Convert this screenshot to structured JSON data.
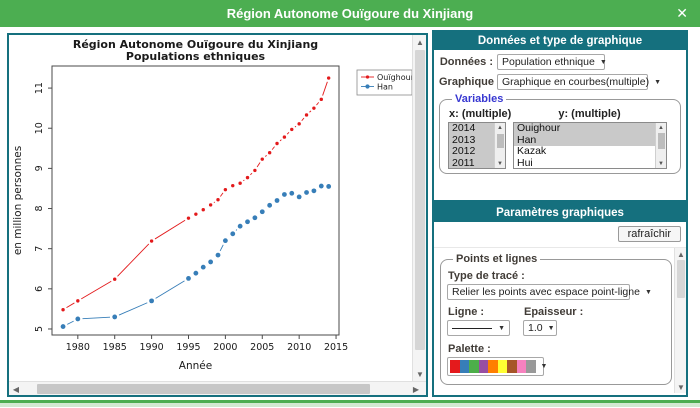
{
  "icons": {
    "close": "✕",
    "dropdown": "▼",
    "scroll_up": "▲",
    "scroll_down": "▼",
    "scroll_left": "◀",
    "scroll_right": "▶",
    "list_up": "▲",
    "list_down": "▼"
  },
  "colors": {
    "titlebar_green": "#4cae51",
    "panel_teal": "#15707e",
    "list_selected": "#c9c9c9",
    "series_red": "#e31a1c",
    "series_blue": "#377eb8"
  },
  "window": {
    "title": "Région Autonome Ouïgoure du Xinjiang"
  },
  "chart_data": {
    "type": "line",
    "title": "Région Autonome Ouïgoure du Xinjiang",
    "subtitle": "Populations ethniques",
    "xlabel": "Année",
    "ylabel": "en million personnes",
    "legend_position": "top-right",
    "grid": false,
    "point_line_style": "points connected by segments with gaps (R type='b')",
    "xlim": [
      1976.5,
      2015.4
    ],
    "ylim": [
      4.85,
      11.55
    ],
    "xticks": [
      1980,
      1985,
      1990,
      1995,
      2000,
      2005,
      2010,
      2015
    ],
    "yticks": [
      5,
      6,
      7,
      8,
      9,
      10,
      11
    ],
    "x": [
      1978,
      1980,
      1985,
      1990,
      1995,
      1996,
      1997,
      1998,
      1999,
      2000,
      2001,
      2002,
      2003,
      2004,
      2005,
      2006,
      2007,
      2008,
      2009,
      2010,
      2011,
      2012,
      2013,
      2014
    ],
    "series": [
      {
        "name": "Ouïghour",
        "color": "#e31a1c",
        "values": [
          5.48,
          5.7,
          6.24,
          7.19,
          7.76,
          7.86,
          7.97,
          8.09,
          8.22,
          8.47,
          8.57,
          8.63,
          8.77,
          8.95,
          9.23,
          9.39,
          9.62,
          9.78,
          9.97,
          10.11,
          10.33,
          10.5,
          10.72,
          11.25
        ]
      },
      {
        "name": "Han",
        "color": "#377eb8",
        "values": [
          5.06,
          5.25,
          5.3,
          5.7,
          6.26,
          6.39,
          6.54,
          6.67,
          6.84,
          7.2,
          7.37,
          7.56,
          7.67,
          7.77,
          7.92,
          8.08,
          8.2,
          8.35,
          8.38,
          8.29,
          8.4,
          8.44,
          8.56,
          8.55
        ]
      }
    ]
  },
  "data_panel": {
    "header": "Données et type de graphique",
    "donnees_label": "Données :",
    "donnees_value": "Population ethnique",
    "graphique_label": "Graphique :",
    "graphique_value": "Graphique en courbes(multiple)",
    "variables": {
      "legend": "Variables",
      "x_label": "x: (multiple)",
      "y_label": "y: (multiple)",
      "x_items": [
        {
          "label": "2014",
          "selected": true
        },
        {
          "label": "2013",
          "selected": true
        },
        {
          "label": "2012",
          "selected": true
        },
        {
          "label": "2011",
          "selected": true
        }
      ],
      "y_items": [
        {
          "label": "Ouighour",
          "selected": true
        },
        {
          "label": "Han",
          "selected": true
        },
        {
          "label": "Kazak",
          "selected": false
        },
        {
          "label": "Hui",
          "selected": false
        }
      ]
    }
  },
  "params_panel": {
    "header": "Paramètres graphiques",
    "refresh_label": "rafraîchir",
    "group_legend": "Points et lignes",
    "trace_label": "Type de tracé :",
    "trace_value": "Relier les points avec espace point-ligne",
    "ligne_label": "Ligne :",
    "epaisseur_label": "Epaisseur :",
    "epaisseur_value": "1.0",
    "palette_label": "Palette :",
    "palette_colors": [
      "#e41a1c",
      "#377eb8",
      "#4daf4a",
      "#984ea3",
      "#ff7f00",
      "#ffff33",
      "#a65628",
      "#f781bf",
      "#999999"
    ]
  }
}
